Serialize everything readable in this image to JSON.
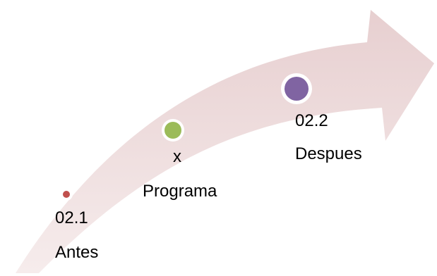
{
  "colors": {
    "arrow_fill_top": "#e7cfd0",
    "arrow_fill_bottom": "#f6ecec",
    "dot_ring": "#ffffff",
    "dot_antes": "#c0504d",
    "dot_programa": "#9bbb59",
    "dot_despues": "#8064a2"
  },
  "stages": [
    {
      "code": "02.1",
      "name": "Antes",
      "color": "#c0504d"
    },
    {
      "code": "x",
      "name": "Programa",
      "color": "#9bbb59"
    },
    {
      "code": "02.2",
      "name": "Despues",
      "color": "#8064a2"
    }
  ]
}
